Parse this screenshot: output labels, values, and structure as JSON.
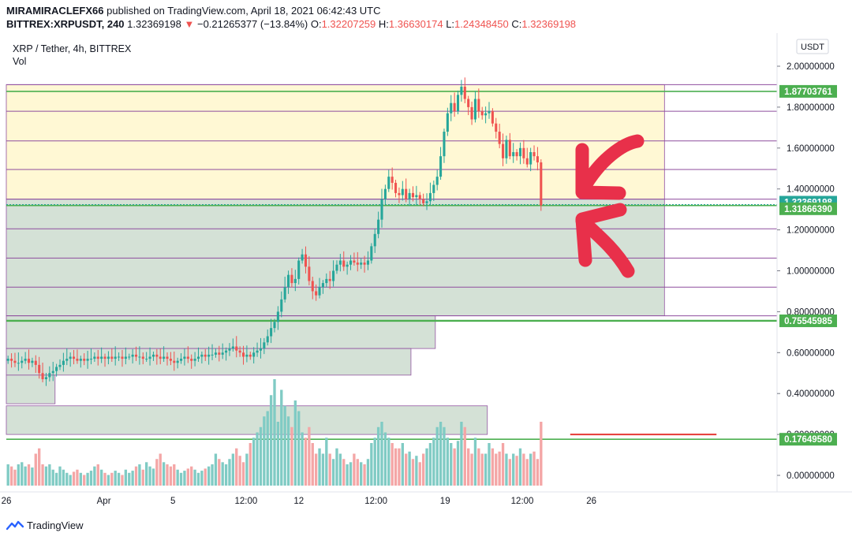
{
  "header": {
    "author": "MIRAMIRACLEFX66",
    "published_text": "published on TradingView.com, April 18, 2021 06:42:43 UTC",
    "symbol": "BITTREX:XRPUSDT, 240",
    "last": "1.32369198",
    "change": "−0.21265377 (−13.84%)",
    "o_label": "O:",
    "o": "1.32207259",
    "h_label": "H:",
    "h": "1.36630174",
    "l_label": "L:",
    "l": "1.24348450",
    "c_label": "C:",
    "c": "1.32369198"
  },
  "legend": {
    "title": "XRP / Tether, 4h, BITTREX",
    "vol": "Vol"
  },
  "currency_button": "USDT",
  "footer": {
    "brand": "TradingView"
  },
  "colors": {
    "up": "#26a69a",
    "down": "#ef5350",
    "vol_up": "#80cbc4",
    "vol_down": "#f4a6a6",
    "zone_yellow": "#fff8d4",
    "zone_green": "#d2e0d4",
    "line_purple": "#8e4d9e",
    "line_green": "#4caf50",
    "arrow": "#e8304a"
  },
  "chart_data": {
    "type": "candlestick",
    "symbol": "XRP / Tether, 4h, BITTREX",
    "y_axis": {
      "min": -0.05,
      "max": 2.04,
      "ticks": [
        0.0,
        0.2,
        0.4,
        0.6,
        0.8,
        1.0,
        1.2,
        1.4,
        1.6,
        1.8,
        2.0
      ],
      "tick_labels": [
        "0.00000000",
        "0.20000000",
        "0.40000000",
        "0.60000000",
        "0.80000000",
        "1.00000000",
        "1.20000000",
        "1.40000000",
        "1.60000000",
        "1.80000000",
        "2.00000000"
      ]
    },
    "x_axis": {
      "labels": [
        "26",
        "Apr",
        "5",
        "12:00",
        "12",
        "12:00",
        "19",
        "12:00",
        "26"
      ],
      "label_days": [
        0,
        6,
        10.25,
        14.75,
        18,
        22.75,
        27,
        31.75,
        36
      ]
    },
    "price_markers": [
      {
        "value": 1.87703761,
        "label": "1.87703761",
        "color": "#4caf50"
      },
      {
        "value": 1.32369198,
        "label": "1.32369198",
        "color": "#26a69a"
      },
      {
        "value": 1.3186639,
        "label": "1.31866390",
        "color": "#4caf50"
      },
      {
        "value": 0.75545985,
        "label": "0.75545985",
        "color": "#4caf50"
      },
      {
        "value": 0.1764958,
        "label": "0.17649580",
        "color": "#4caf50"
      }
    ],
    "horizontal_lines_purple": [
      1.91,
      1.78,
      1.635,
      1.495,
      1.35,
      1.205,
      1.062,
      0.92,
      0.78
    ],
    "horizontal_lines_green": [
      1.877,
      1.319,
      0.7555,
      0.1765
    ],
    "zones": [
      {
        "kind": "resistance",
        "top": 1.91,
        "bottom": 1.35,
        "day_end": 40.5
      },
      {
        "kind": "support",
        "top": 1.35,
        "bottom": 0.78,
        "day_end": 40.5
      },
      {
        "kind": "support",
        "top": 0.78,
        "bottom": 0.62,
        "day_end": 26.4
      },
      {
        "kind": "support",
        "top": 0.62,
        "bottom": 0.49,
        "day_end": 24.9
      },
      {
        "kind": "support",
        "top": 0.49,
        "bottom": 0.35,
        "day_end": 3.0
      },
      {
        "kind": "support",
        "top": 0.34,
        "bottom": 0.2,
        "day_end": 29.6
      }
    ],
    "red_level": {
      "value": 0.2,
      "day_start": 34.7,
      "day_end": 43.7
    },
    "closes": [
      0.57,
      0.56,
      0.55,
      0.55,
      0.56,
      0.57,
      0.55,
      0.56,
      0.54,
      0.5,
      0.47,
      0.48,
      0.5,
      0.51,
      0.53,
      0.54,
      0.56,
      0.57,
      0.58,
      0.57,
      0.56,
      0.57,
      0.56,
      0.57,
      0.57,
      0.58,
      0.57,
      0.58,
      0.57,
      0.58,
      0.57,
      0.58,
      0.58,
      0.57,
      0.58,
      0.58,
      0.59,
      0.58,
      0.58,
      0.57,
      0.57,
      0.58,
      0.59,
      0.58,
      0.57,
      0.58,
      0.57,
      0.56,
      0.55,
      0.56,
      0.57,
      0.58,
      0.57,
      0.56,
      0.57,
      0.58,
      0.59,
      0.58,
      0.59,
      0.59,
      0.6,
      0.59,
      0.6,
      0.61,
      0.62,
      0.63,
      0.61,
      0.6,
      0.58,
      0.59,
      0.58,
      0.6,
      0.61,
      0.62,
      0.65,
      0.68,
      0.72,
      0.75,
      0.8,
      0.86,
      0.92,
      0.98,
      0.94,
      0.96,
      1.05,
      1.08,
      1.02,
      0.95,
      0.9,
      0.88,
      0.92,
      0.94,
      0.96,
      0.95,
      1.0,
      1.03,
      1.05,
      1.02,
      1.03,
      1.05,
      1.04,
      1.03,
      1.04,
      1.03,
      1.05,
      1.12,
      1.18,
      1.25,
      1.35,
      1.4,
      1.46,
      1.43,
      1.38,
      1.37,
      1.4,
      1.35,
      1.38,
      1.36,
      1.37,
      1.35,
      1.33,
      1.34,
      1.38,
      1.42,
      1.46,
      1.56,
      1.68,
      1.77,
      1.82,
      1.78,
      1.86,
      1.9,
      1.84,
      1.8,
      1.74,
      1.84,
      1.78,
      1.76,
      1.77,
      1.78,
      1.72,
      1.68,
      1.62,
      1.55,
      1.64,
      1.56,
      1.58,
      1.56,
      1.6,
      1.55,
      1.52,
      1.58,
      1.56,
      1.53,
      1.32
    ],
    "volume_relative": [
      0.2,
      0.18,
      0.15,
      0.2,
      0.22,
      0.18,
      0.2,
      0.17,
      0.3,
      0.35,
      0.2,
      0.18,
      0.2,
      0.15,
      0.12,
      0.18,
      0.15,
      0.12,
      0.1,
      0.13,
      0.15,
      0.12,
      0.1,
      0.12,
      0.14,
      0.18,
      0.2,
      0.15,
      0.12,
      0.1,
      0.12,
      0.14,
      0.12,
      0.1,
      0.15,
      0.12,
      0.14,
      0.18,
      0.2,
      0.15,
      0.22,
      0.18,
      0.16,
      0.25,
      0.3,
      0.22,
      0.2,
      0.18,
      0.2,
      0.15,
      0.12,
      0.14,
      0.16,
      0.18,
      0.15,
      0.12,
      0.14,
      0.16,
      0.18,
      0.2,
      0.3,
      0.25,
      0.22,
      0.2,
      0.25,
      0.3,
      0.35,
      0.28,
      0.22,
      0.3,
      0.4,
      0.45,
      0.5,
      0.55,
      0.65,
      0.7,
      0.85,
      1.0,
      0.6,
      0.9,
      0.75,
      0.65,
      0.55,
      0.8,
      0.7,
      0.5,
      0.45,
      0.55,
      0.4,
      0.3,
      0.35,
      0.3,
      0.45,
      0.3,
      0.25,
      0.35,
      0.3,
      0.25,
      0.2,
      0.22,
      0.3,
      0.25,
      0.22,
      0.2,
      0.25,
      0.4,
      0.45,
      0.55,
      0.6,
      0.5,
      0.45,
      0.4,
      0.35,
      0.35,
      0.4,
      0.3,
      0.32,
      0.25,
      0.28,
      0.22,
      0.3,
      0.35,
      0.4,
      0.45,
      0.55,
      0.6,
      0.55,
      0.45,
      0.4,
      0.35,
      0.42,
      0.6,
      0.55,
      0.35,
      0.3,
      0.45,
      0.35,
      0.3,
      0.3,
      0.4,
      0.35,
      0.3,
      0.32,
      0.4,
      0.3,
      0.25,
      0.3,
      0.28,
      0.35,
      0.3,
      0.25,
      0.3,
      0.32,
      0.25,
      0.6
    ]
  }
}
